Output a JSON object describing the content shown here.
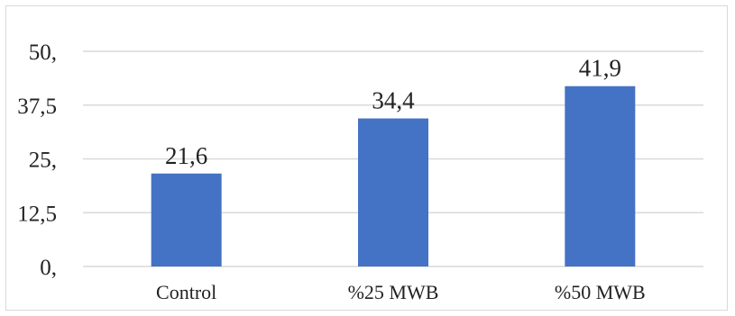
{
  "chart_data": {
    "type": "bar",
    "categories": [
      "Control",
      "%25 MWB",
      "%50 MWB"
    ],
    "values": [
      21.6,
      34.4,
      41.9
    ],
    "data_labels": [
      "21,6",
      "34,4",
      "41,9"
    ],
    "y_ticks": [
      0,
      12.5,
      25,
      37.5,
      50
    ],
    "y_tick_labels": [
      "0,",
      "12,5",
      "25,",
      "37,5",
      "50,"
    ],
    "ylim": [
      0,
      50
    ],
    "grid": true,
    "legend": "none",
    "title": "",
    "xlabel": "",
    "ylabel": "",
    "bar_color": "#4472c4",
    "grid_color": "#d9d9d9"
  }
}
